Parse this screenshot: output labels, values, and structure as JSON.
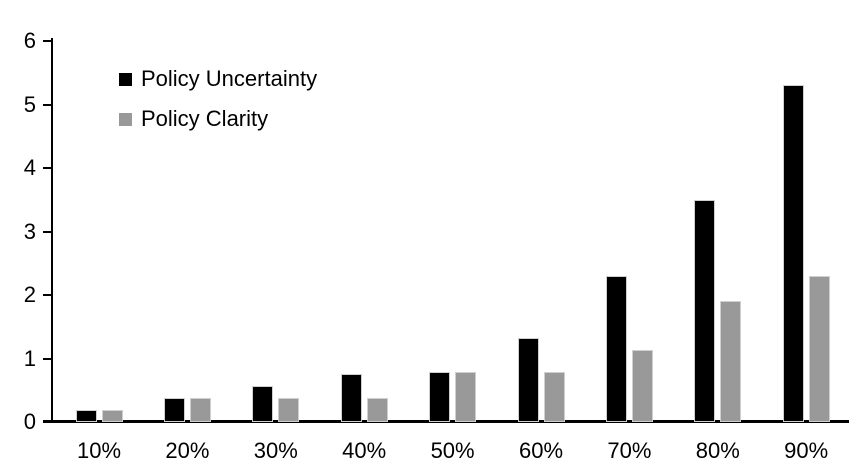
{
  "chart_data": {
    "type": "bar",
    "title": "",
    "xlabel": "",
    "ylabel": "",
    "categories": [
      "10%",
      "20%",
      "30%",
      "40%",
      "50%",
      "60%",
      "70%",
      "80%",
      "90%"
    ],
    "series": [
      {
        "name": "Policy Uncertainty",
        "color": "#000000",
        "values": [
          0.19,
          0.38,
          0.57,
          0.76,
          0.78,
          1.33,
          2.3,
          3.5,
          5.3
        ]
      },
      {
        "name": "Policy Clarity",
        "color": "#999999",
        "values": [
          0.19,
          0.38,
          0.38,
          0.38,
          0.78,
          0.78,
          1.13,
          1.9,
          2.3
        ]
      }
    ],
    "ylim": [
      0,
      6
    ],
    "yticks": [
      0,
      1,
      2,
      3,
      4,
      5,
      6
    ],
    "grid": false,
    "legend_position": "top-left",
    "axis_color": "#000000",
    "background_color": "#ffffff"
  }
}
